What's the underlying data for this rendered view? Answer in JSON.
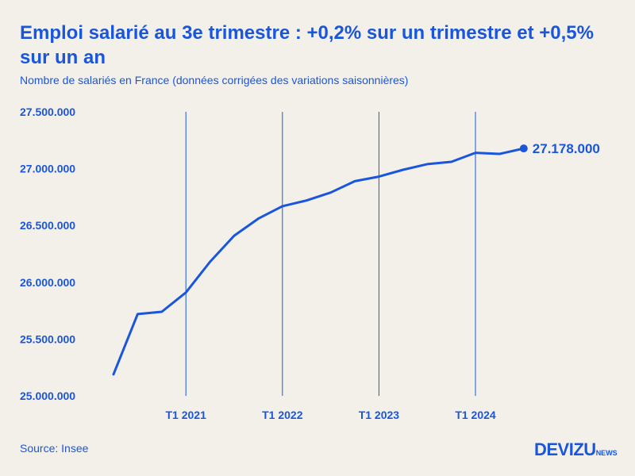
{
  "header": {
    "title": "Emploi salarié au 3e trimestre : +0,2% sur un trimestre et +0,5% sur un an",
    "subtitle": "Nombre de salariés en France (données corrigées des variations saisonnières)"
  },
  "footer": {
    "source": "Source: Insee",
    "logo_main": "DEVIZU",
    "logo_sub": "NEWS"
  },
  "colors": {
    "accent": "#1a56db",
    "background": "#f3f0ea"
  },
  "chart_data": {
    "type": "line",
    "title": "Emploi salarié au 3e trimestre : +0,2% sur un trimestre et +0,5% sur un an",
    "xlabel": "",
    "ylabel": "",
    "ylim": [
      25000000,
      27500000
    ],
    "yticks": [
      25000000,
      25500000,
      26000000,
      26500000,
      27000000,
      27500000
    ],
    "ytick_labels": [
      "25.000.000",
      "25.500.000",
      "26.000.000",
      "26.500.000",
      "27.000.000",
      "27.500.000"
    ],
    "xtick_labels": [
      "T1 2021",
      "T1 2022",
      "T1 2023",
      "T1 2024"
    ],
    "xtick_index": [
      3,
      7,
      11,
      15
    ],
    "vertical_gridlines": true,
    "x": [
      "T2 2020",
      "T3 2020",
      "T4 2020",
      "T1 2021",
      "T2 2021",
      "T3 2021",
      "T4 2021",
      "T1 2022",
      "T2 2022",
      "T3 2022",
      "T4 2022",
      "T1 2023",
      "T2 2023",
      "T3 2023",
      "T4 2023",
      "T1 2024",
      "T2 2024",
      "T3 2024"
    ],
    "series": [
      {
        "values": [
          25190000,
          25720000,
          25740000,
          25910000,
          26180000,
          26410000,
          26560000,
          26670000,
          26720000,
          26790000,
          26890000,
          26930000,
          26990000,
          27040000,
          27060000,
          27140000,
          27130000,
          27178000
        ]
      }
    ],
    "last_value_label": "27.178.000"
  }
}
